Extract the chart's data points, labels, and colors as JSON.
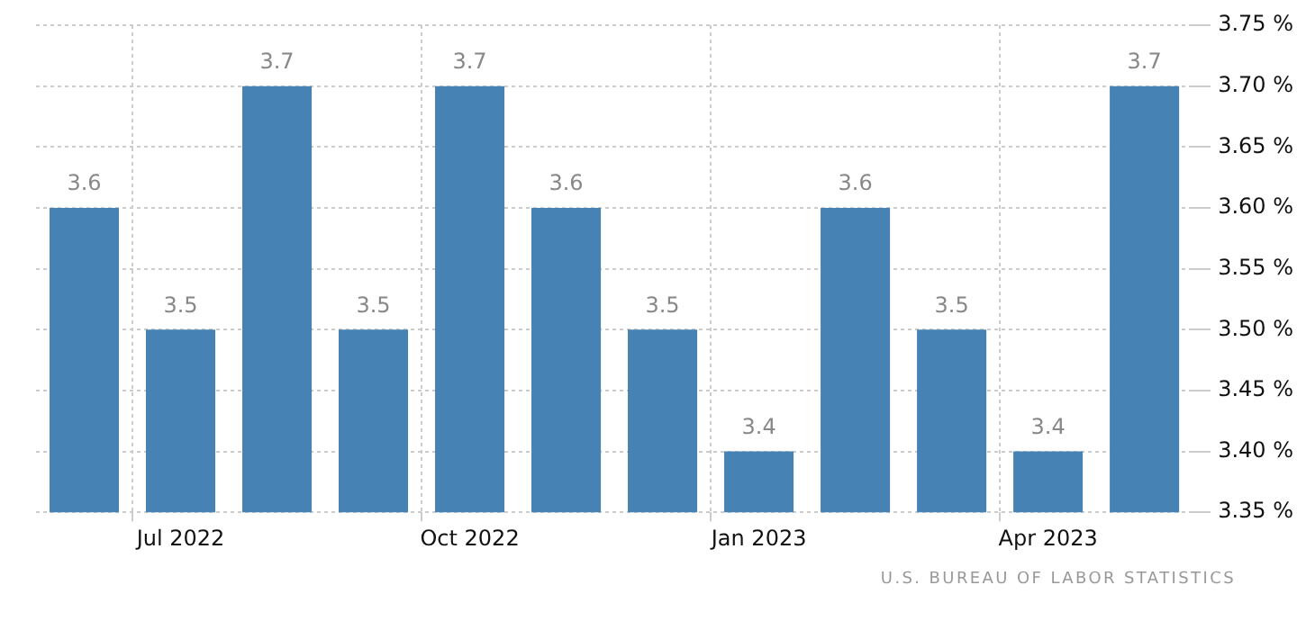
{
  "chart_data": {
    "type": "bar",
    "categories": [
      null,
      "Jul 2022",
      null,
      null,
      "Oct 2022",
      null,
      null,
      "Jan 2023",
      null,
      null,
      "Apr 2023",
      null
    ],
    "values": [
      3.6,
      3.5,
      3.7,
      3.5,
      3.7,
      3.6,
      3.5,
      3.4,
      3.6,
      3.5,
      3.4,
      3.7
    ],
    "color": "#4682b4",
    "ylim": [
      3.35,
      3.75
    ],
    "yticks": [
      {
        "value": 3.35,
        "label": "3.35 %"
      },
      {
        "value": 3.4,
        "label": "3.40 %"
      },
      {
        "value": 3.45,
        "label": "3.45 %"
      },
      {
        "value": 3.5,
        "label": "3.50 %"
      },
      {
        "value": 3.55,
        "label": "3.55 %"
      },
      {
        "value": 3.6,
        "label": "3.60 %"
      },
      {
        "value": 3.65,
        "label": "3.65 %"
      },
      {
        "value": 3.7,
        "label": "3.70 %"
      },
      {
        "value": 3.75,
        "label": "3.75 %"
      }
    ],
    "grid": true,
    "data_labels": true,
    "annotations": [
      "U.S. BUREAU OF LABOR STATISTICS"
    ]
  }
}
